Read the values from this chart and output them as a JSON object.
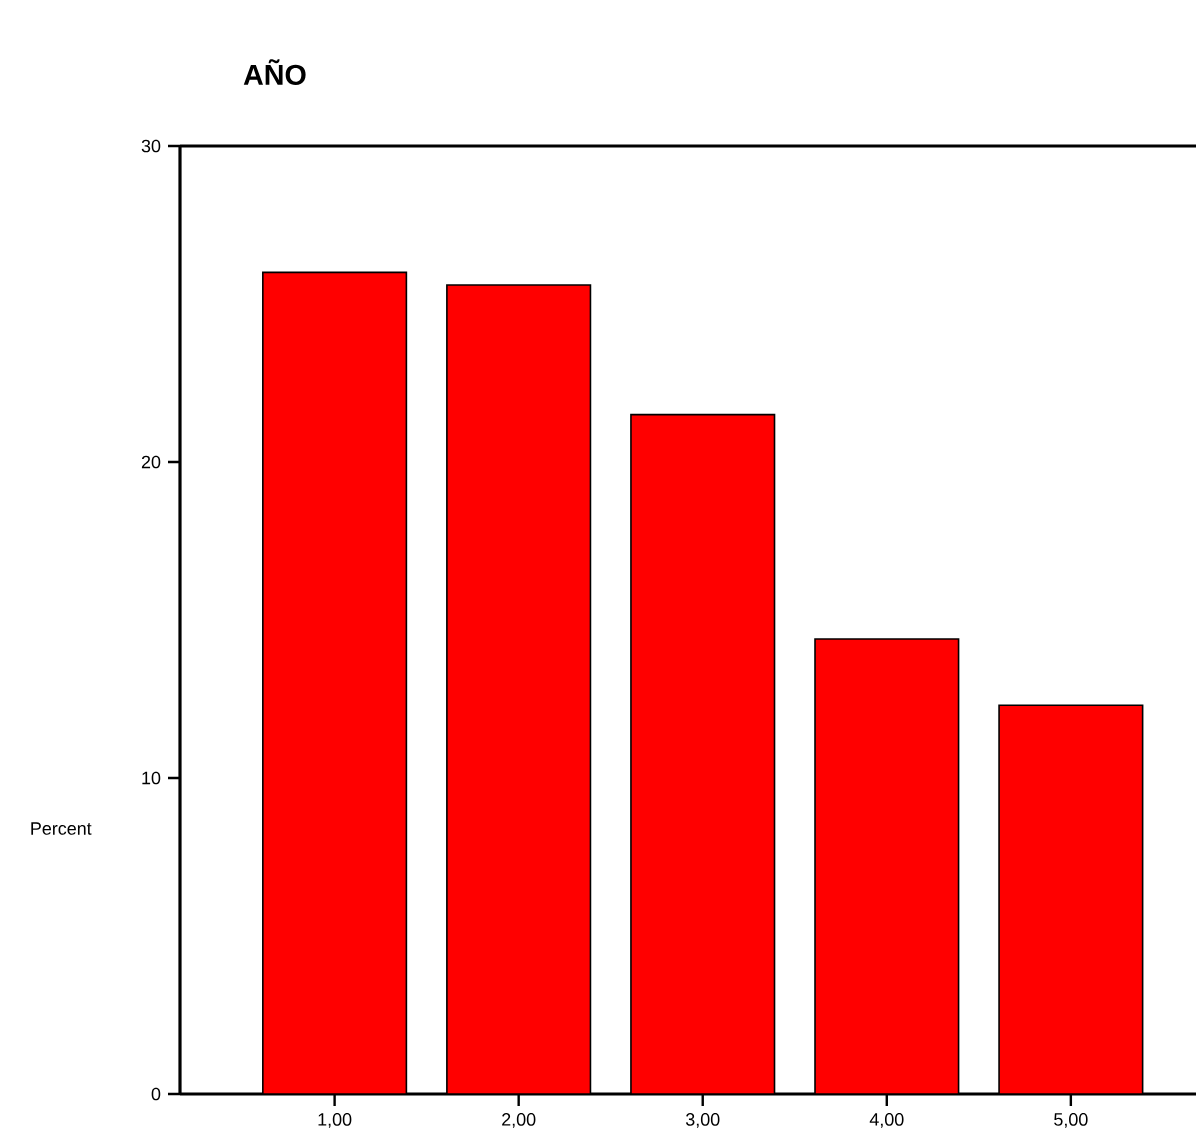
{
  "chart_data": {
    "type": "bar",
    "title": "AÑO",
    "ylabel": "Percent",
    "categories": [
      "1,00",
      "2,00",
      "3,00",
      "4,00",
      "5,00"
    ],
    "values": [
      26.0,
      25.6,
      21.5,
      14.4,
      12.3
    ],
    "color": "#ff0000",
    "ylim": [
      0,
      30
    ],
    "yticks": [
      0,
      10,
      20,
      30
    ],
    "grid": false
  }
}
